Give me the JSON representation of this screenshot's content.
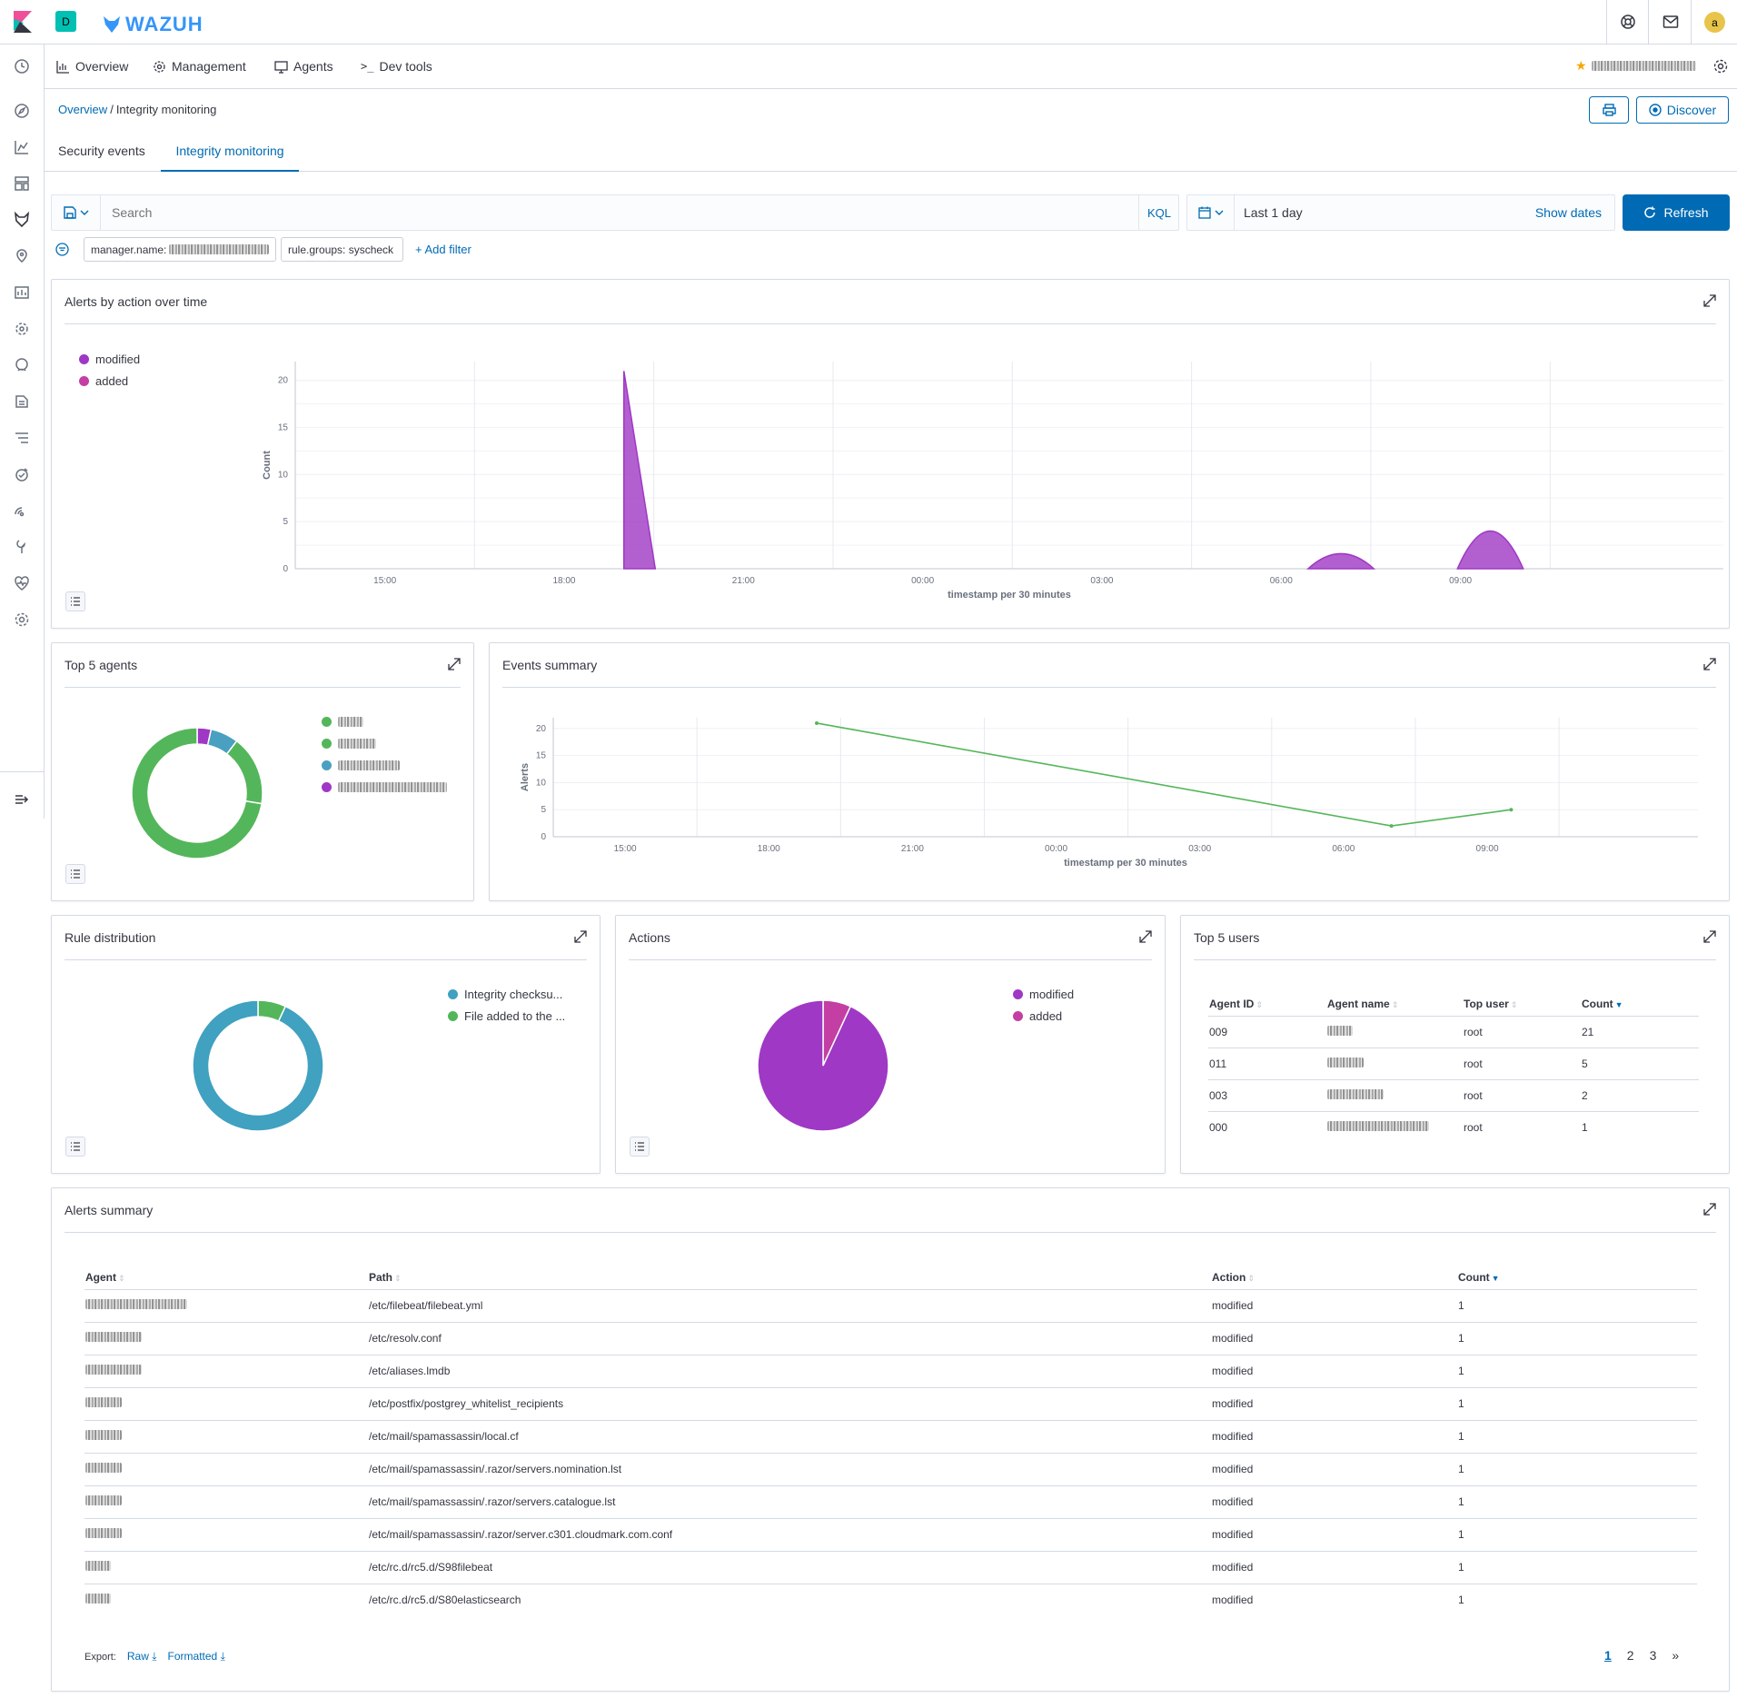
{
  "header": {
    "space_letter": "D",
    "brand": "WAZUH",
    "user_initial": "a"
  },
  "nav": {
    "items": [
      {
        "label": "Overview",
        "icon": "chart-icon"
      },
      {
        "label": "Management",
        "icon": "gear-icon"
      },
      {
        "label": "Agents",
        "icon": "monitor-icon"
      },
      {
        "label": "Dev tools",
        "icon": "console-icon"
      }
    ]
  },
  "breadcrumb": {
    "root": "Overview",
    "separator": "/",
    "current": "Integrity monitoring"
  },
  "buttons": {
    "discover": "Discover",
    "refresh": "Refresh",
    "add_filter": "+ Add filter"
  },
  "tabs": [
    {
      "label": "Security events",
      "active": false
    },
    {
      "label": "Integrity monitoring",
      "active": true
    }
  ],
  "search": {
    "placeholder": "Search",
    "language": "KQL"
  },
  "timepicker": {
    "range": "Last 1 day",
    "show_dates": "Show dates"
  },
  "filters": {
    "pill1_prefix": "manager.name:",
    "pill2": "rule.groups: syscheck"
  },
  "panels": {
    "alerts_over_time": "Alerts by action over time",
    "top_agents": "Top 5 agents",
    "events_summary": "Events summary",
    "rule_distribution": "Rule distribution",
    "actions": "Actions",
    "top_users": "Top 5 users",
    "alerts_summary": "Alerts summary"
  },
  "colors": {
    "modified": "#9f38c4",
    "added": "#c33fa4",
    "green": "#54b65a",
    "blue": "#4aa0c0",
    "teal": "#40a1c0",
    "accent": "#006bb4"
  },
  "chart_data": [
    {
      "type": "area",
      "xlabel": "timestamp per 30 minutes",
      "ylabel": "Count",
      "x_ticks": [
        "15:00",
        "18:00",
        "21:00",
        "00:00",
        "03:00",
        "06:00",
        "09:00"
      ],
      "y_ticks": [
        0,
        5,
        10,
        15,
        20
      ],
      "ylim": [
        0,
        22
      ],
      "legend": [
        "modified",
        "added"
      ],
      "series": [
        {
          "name": "modified",
          "points": [
            [
              "19:00",
              21
            ],
            [
              "07:00",
              2
            ],
            [
              "09:30",
              5
            ]
          ]
        }
      ]
    },
    {
      "type": "line",
      "xlabel": "timestamp per 30 minutes",
      "ylabel": "Alerts",
      "x_ticks": [
        "15:00",
        "18:00",
        "21:00",
        "00:00",
        "03:00",
        "06:00",
        "09:00"
      ],
      "y_ticks": [
        0,
        5,
        10,
        15,
        20
      ],
      "ylim": [
        0,
        22
      ],
      "series": [
        {
          "points": [
            [
              "19:00",
              21
            ],
            [
              "07:00",
              2
            ],
            [
              "09:30",
              5
            ]
          ]
        }
      ]
    },
    {
      "type": "pie",
      "donut": true,
      "values": [
        21,
        5,
        2,
        1
      ],
      "colors": [
        "#54b65a",
        "#54b65a",
        "#4aa0c0",
        "#9f38c4"
      ]
    },
    {
      "type": "pie",
      "donut": true,
      "labels": [
        "Integrity checksu...",
        "File added to the ..."
      ],
      "values": [
        27,
        2
      ],
      "colors": [
        "#40a1c0",
        "#54b65a"
      ]
    },
    {
      "type": "pie",
      "donut": false,
      "labels": [
        "modified",
        "added"
      ],
      "values": [
        27,
        2
      ],
      "colors": [
        "#9f38c4",
        "#c33fa4"
      ]
    }
  ],
  "top_users": {
    "headers": [
      "Agent ID",
      "Agent name",
      "Top user",
      "Count"
    ],
    "rows": [
      {
        "id": "009",
        "user": "root",
        "count": "21"
      },
      {
        "id": "011",
        "user": "root",
        "count": "5"
      },
      {
        "id": "003",
        "user": "root",
        "count": "2"
      },
      {
        "id": "000",
        "user": "root",
        "count": "1"
      }
    ]
  },
  "alerts_summary": {
    "headers": [
      "Agent",
      "Path",
      "Action",
      "Count"
    ],
    "rows": [
      {
        "path": "/etc/filebeat/filebeat.yml",
        "action": "modified",
        "count": "1"
      },
      {
        "path": "/etc/resolv.conf",
        "action": "modified",
        "count": "1"
      },
      {
        "path": "/etc/aliases.lmdb",
        "action": "modified",
        "count": "1"
      },
      {
        "path": "/etc/postfix/postgrey_whitelist_recipients",
        "action": "modified",
        "count": "1"
      },
      {
        "path": "/etc/mail/spamassassin/local.cf",
        "action": "modified",
        "count": "1"
      },
      {
        "path": "/etc/mail/spamassassin/.razor/servers.nomination.lst",
        "action": "modified",
        "count": "1"
      },
      {
        "path": "/etc/mail/spamassassin/.razor/servers.catalogue.lst",
        "action": "modified",
        "count": "1"
      },
      {
        "path": "/etc/mail/spamassassin/.razor/server.c301.cloudmark.com.conf",
        "action": "modified",
        "count": "1"
      },
      {
        "path": "/etc/rc.d/rc5.d/S98filebeat",
        "action": "modified",
        "count": "1"
      },
      {
        "path": "/etc/rc.d/rc5.d/S80elasticsearch",
        "action": "modified",
        "count": "1"
      }
    ],
    "export_label": "Export:",
    "export_raw": "Raw",
    "export_formatted": "Formatted",
    "pages": [
      "1",
      "2",
      "3"
    ],
    "next": "»"
  }
}
